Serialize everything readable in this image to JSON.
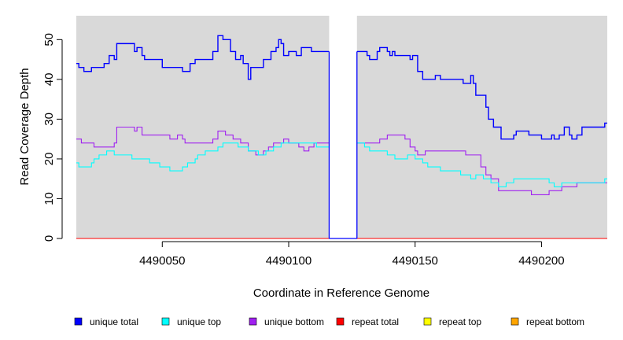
{
  "chart_data": {
    "type": "line",
    "xlabel": "Coordinate in Reference Genome",
    "ylabel": "Read Coverage Depth",
    "xlim": [
      4490016,
      4490226
    ],
    "ylim": [
      0,
      56
    ],
    "x_ticks": [
      4490050,
      4490100,
      4490150,
      4490200
    ],
    "x_tick_labels": [
      "4490050",
      "4490100",
      "4490150",
      "4490200"
    ],
    "y_ticks": [
      0,
      10,
      20,
      30,
      40,
      50
    ],
    "y_tick_labels": [
      "0",
      "10",
      "20",
      "30",
      "40",
      "50"
    ],
    "gap": [
      4490116,
      4490127
    ],
    "legend_position": "bottom",
    "series": [
      {
        "name": "unique total",
        "color": "#0000ff",
        "steps": [
          [
            4490016,
            44
          ],
          [
            4490017,
            43
          ],
          [
            4490019,
            42
          ],
          [
            4490022,
            43
          ],
          [
            4490027,
            44
          ],
          [
            4490029,
            46
          ],
          [
            4490031,
            45
          ],
          [
            4490032,
            49
          ],
          [
            4490039,
            47
          ],
          [
            4490040,
            48
          ],
          [
            4490042,
            46
          ],
          [
            4490043,
            45
          ],
          [
            4490050,
            43
          ],
          [
            4490058,
            42
          ],
          [
            4490061,
            44
          ],
          [
            4490063,
            45
          ],
          [
            4490070,
            47
          ],
          [
            4490072,
            51
          ],
          [
            4490074,
            50
          ],
          [
            4490077,
            47
          ],
          [
            4490079,
            45
          ],
          [
            4490081,
            46
          ],
          [
            4490082,
            44
          ],
          [
            4490084,
            40
          ],
          [
            4490085,
            43
          ],
          [
            4490090,
            45
          ],
          [
            4490093,
            47
          ],
          [
            4490095,
            48
          ],
          [
            4490096,
            50
          ],
          [
            4490097,
            49
          ],
          [
            4490098,
            46
          ],
          [
            4490100,
            47
          ],
          [
            4490103,
            46
          ],
          [
            4490105,
            48
          ],
          [
            4490109,
            47
          ],
          [
            4490111,
            47
          ],
          [
            4490127,
            47
          ],
          [
            4490131,
            46
          ],
          [
            4490132,
            45
          ],
          [
            4490135,
            47
          ],
          [
            4490136,
            48
          ],
          [
            4490139,
            47
          ],
          [
            4490140,
            46
          ],
          [
            4490141,
            47
          ],
          [
            4490142,
            46
          ],
          [
            4490148,
            45
          ],
          [
            4490149,
            46
          ],
          [
            4490151,
            42
          ],
          [
            4490153,
            40
          ],
          [
            4490158,
            41
          ],
          [
            4490160,
            40
          ],
          [
            4490169,
            39
          ],
          [
            4490172,
            41
          ],
          [
            4490173,
            39
          ],
          [
            4490174,
            36
          ],
          [
            4490178,
            33
          ],
          [
            4490179,
            30
          ],
          [
            4490181,
            28
          ],
          [
            4490184,
            25
          ],
          [
            4490189,
            26
          ],
          [
            4490190,
            27
          ],
          [
            4490195,
            26
          ],
          [
            4490198,
            26
          ],
          [
            4490200,
            25
          ],
          [
            4490204,
            26
          ],
          [
            4490205,
            25
          ],
          [
            4490207,
            26
          ],
          [
            4490209,
            28
          ],
          [
            4490211,
            26
          ],
          [
            4490212,
            25
          ],
          [
            4490214,
            26
          ],
          [
            4490216,
            28
          ],
          [
            4490225,
            29
          ],
          [
            4490226,
            29
          ]
        ]
      },
      {
        "name": "unique top",
        "color": "#00ffff",
        "steps": [
          [
            4490016,
            19
          ],
          [
            4490017,
            18
          ],
          [
            4490022,
            19
          ],
          [
            4490023,
            20
          ],
          [
            4490025,
            21
          ],
          [
            4490028,
            22
          ],
          [
            4490031,
            21
          ],
          [
            4490038,
            20
          ],
          [
            4490045,
            19
          ],
          [
            4490049,
            18
          ],
          [
            4490053,
            17
          ],
          [
            4490058,
            18
          ],
          [
            4490060,
            19
          ],
          [
            4490063,
            20
          ],
          [
            4490064,
            21
          ],
          [
            4490067,
            22
          ],
          [
            4490072,
            23
          ],
          [
            4490074,
            24
          ],
          [
            4490080,
            23
          ],
          [
            4490084,
            22
          ],
          [
            4490088,
            21
          ],
          [
            4490091,
            22
          ],
          [
            4490094,
            23
          ],
          [
            4490097,
            24
          ],
          [
            4490099,
            24
          ],
          [
            4490102,
            24
          ],
          [
            4490111,
            23
          ],
          [
            4490116,
            23
          ],
          [
            4490127,
            24
          ],
          [
            4490130,
            23
          ],
          [
            4490132,
            22
          ],
          [
            4490136,
            22
          ],
          [
            4490139,
            21
          ],
          [
            4490142,
            20
          ],
          [
            4490147,
            21
          ],
          [
            4490150,
            20
          ],
          [
            4490153,
            19
          ],
          [
            4490155,
            18
          ],
          [
            4490160,
            17
          ],
          [
            4490163,
            17
          ],
          [
            4490168,
            16
          ],
          [
            4490172,
            15
          ],
          [
            4490174,
            16
          ],
          [
            4490177,
            15
          ],
          [
            4490180,
            14
          ],
          [
            4490183,
            13
          ],
          [
            4490186,
            14
          ],
          [
            4490189,
            15
          ],
          [
            4490193,
            15
          ],
          [
            4490199,
            15
          ],
          [
            4490203,
            14
          ],
          [
            4490205,
            13
          ],
          [
            4490208,
            14
          ],
          [
            4490210,
            14
          ],
          [
            4490217,
            14
          ],
          [
            4490225,
            15
          ],
          [
            4490226,
            15
          ]
        ]
      },
      {
        "name": "unique bottom",
        "color": "#a020f0",
        "steps": [
          [
            4490016,
            25
          ],
          [
            4490018,
            24
          ],
          [
            4490023,
            23
          ],
          [
            4490027,
            23
          ],
          [
            4490031,
            24
          ],
          [
            4490032,
            28
          ],
          [
            4490039,
            27
          ],
          [
            4490040,
            28
          ],
          [
            4490042,
            26
          ],
          [
            4490050,
            26
          ],
          [
            4490053,
            25
          ],
          [
            4490056,
            26
          ],
          [
            4490058,
            25
          ],
          [
            4490059,
            24
          ],
          [
            4490065,
            24
          ],
          [
            4490070,
            25
          ],
          [
            4490072,
            27
          ],
          [
            4490075,
            26
          ],
          [
            4490078,
            25
          ],
          [
            4490081,
            24
          ],
          [
            4490084,
            22
          ],
          [
            4490087,
            21
          ],
          [
            4490090,
            22
          ],
          [
            4490092,
            23
          ],
          [
            4490094,
            24
          ],
          [
            4490098,
            25
          ],
          [
            4490100,
            24
          ],
          [
            4490104,
            23
          ],
          [
            4490106,
            22
          ],
          [
            4490108,
            23
          ],
          [
            4490110,
            24
          ],
          [
            4490113,
            24
          ],
          [
            4490127,
            24
          ],
          [
            4490133,
            24
          ],
          [
            4490136,
            25
          ],
          [
            4490139,
            26
          ],
          [
            4490146,
            25
          ],
          [
            4490148,
            23
          ],
          [
            4490150,
            22
          ],
          [
            4490151,
            21
          ],
          [
            4490152,
            21
          ],
          [
            4490154,
            22
          ],
          [
            4490166,
            22
          ],
          [
            4490170,
            21
          ],
          [
            4490176,
            18
          ],
          [
            4490178,
            16
          ],
          [
            4490180,
            15
          ],
          [
            4490183,
            12
          ],
          [
            4490194,
            12
          ],
          [
            4490196,
            11
          ],
          [
            4490203,
            12
          ],
          [
            4490208,
            13
          ],
          [
            4490214,
            14
          ],
          [
            4490225,
            14
          ],
          [
            4490226,
            14
          ]
        ]
      },
      {
        "name": "repeat total",
        "color": "#ff0000",
        "steps": [
          [
            4490016,
            0
          ],
          [
            4490226,
            0
          ]
        ]
      },
      {
        "name": "repeat top",
        "color": "#ffff00",
        "steps": [
          [
            4490016,
            0
          ],
          [
            4490226,
            0
          ]
        ]
      },
      {
        "name": "repeat bottom",
        "color": "#ffa500",
        "steps": [
          [
            4490016,
            0
          ],
          [
            4490226,
            0
          ]
        ]
      }
    ]
  }
}
